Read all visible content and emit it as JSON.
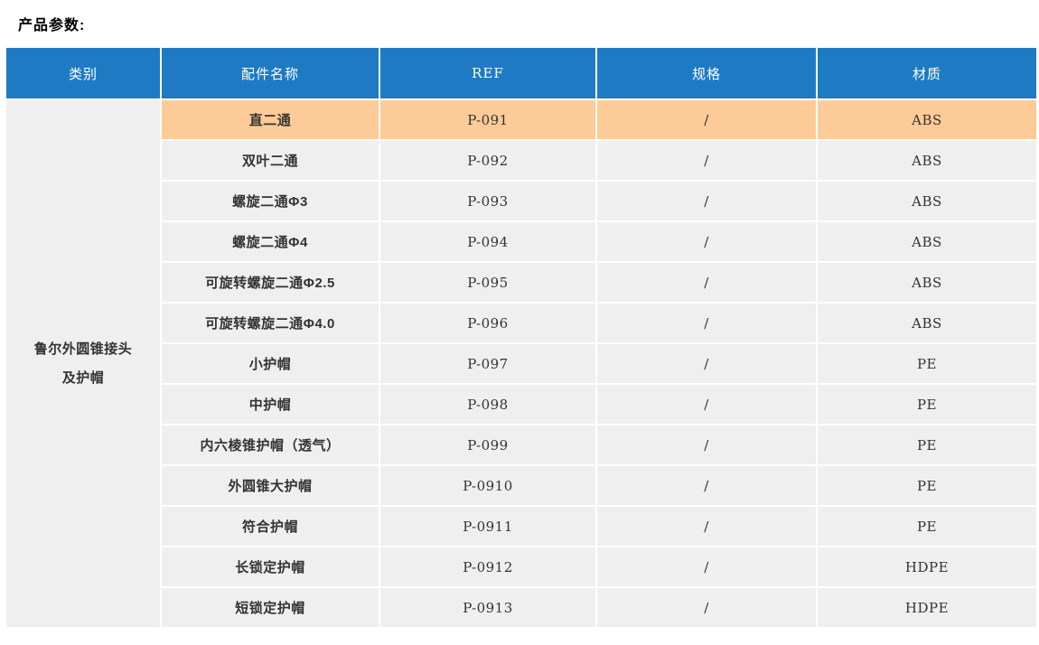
{
  "title": "产品参数:",
  "colors": {
    "header_bg": "#1E7BC3",
    "header_text": "#FFFFFF",
    "row_bg": "#EFEFEF",
    "highlight_bg": "#FDCB97",
    "body_text": "#333333"
  },
  "table": {
    "headers": [
      "类别",
      "配件名称",
      "REF",
      "规格",
      "材质"
    ],
    "category_label": "鲁尔外圆锥接头及护帽",
    "highlighted_row_index": 0,
    "rows": [
      {
        "name": "直二通",
        "ref": "P-091",
        "spec": "/",
        "material": "ABS"
      },
      {
        "name": "双叶二通",
        "ref": "P-092",
        "spec": "/",
        "material": "ABS"
      },
      {
        "name": "螺旋二通Φ3",
        "ref": "P-093",
        "spec": "/",
        "material": "ABS"
      },
      {
        "name": "螺旋二通Φ4",
        "ref": "P-094",
        "spec": "/",
        "material": "ABS"
      },
      {
        "name": "可旋转螺旋二通Φ2.5",
        "ref": "P-095",
        "spec": "/",
        "material": "ABS"
      },
      {
        "name": "可旋转螺旋二通Φ4.0",
        "ref": "P-096",
        "spec": "/",
        "material": "ABS"
      },
      {
        "name": "小护帽",
        "ref": "P-097",
        "spec": "/",
        "material": "PE"
      },
      {
        "name": "中护帽",
        "ref": "P-098",
        "spec": "/",
        "material": "PE"
      },
      {
        "name": "内六棱锥护帽（透气）",
        "ref": "P-099",
        "spec": "/",
        "material": "PE"
      },
      {
        "name": "外圆锥大护帽",
        "ref": "P-0910",
        "spec": "/",
        "material": "PE"
      },
      {
        "name": "符合护帽",
        "ref": "P-0911",
        "spec": "/",
        "material": "PE"
      },
      {
        "name": "长锁定护帽",
        "ref": "P-0912",
        "spec": "/",
        "material": "HDPE"
      },
      {
        "name": "短锁定护帽",
        "ref": "P-0913",
        "spec": "/",
        "material": "HDPE"
      }
    ]
  }
}
